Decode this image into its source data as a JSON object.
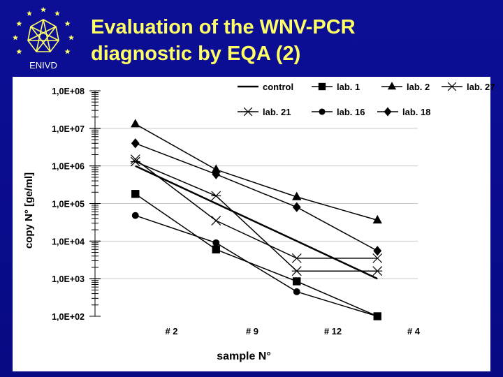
{
  "header": {
    "title_line1": "Evaluation of the WNV-PCR",
    "title_line2": "diagnostic by EQA (2)"
  },
  "logo": {
    "text": "ENIVD",
    "icon": "enivd-logo-icon"
  },
  "chart_data": {
    "type": "line",
    "ylabel": "copy N° [ge/ml]",
    "xlabel": "sample N°",
    "yscale": "log",
    "ylim": [
      100,
      100000000
    ],
    "yticks": [
      "1,0E+08",
      "1,0E+07",
      "1,0E+06",
      "1,0E+05",
      "1,0E+04",
      "1,0E+03",
      "1,0E+02"
    ],
    "categories": [
      "# 2",
      "# 9",
      "# 12",
      "# 4"
    ],
    "legend_position": "top",
    "grid": "horizontal",
    "series": [
      {
        "name": "control",
        "marker": "none",
        "width": 2.5,
        "values": [
          1000000,
          100000,
          10000,
          1000
        ]
      },
      {
        "name": "lab. 1",
        "marker": "square",
        "width": 1.5,
        "values": [
          180000,
          6000,
          850,
          100
        ]
      },
      {
        "name": "lab. 2",
        "marker": "triangle",
        "width": 1.5,
        "values": [
          13000000,
          800000,
          150000,
          36000
        ]
      },
      {
        "name": "lab. 27",
        "marker": "x",
        "width": 1.5,
        "values": [
          1500000,
          35000,
          3500,
          3500
        ]
      },
      {
        "name": "lab. 21",
        "marker": "asterisk",
        "width": 1.5,
        "values": [
          1300000,
          160000,
          1600,
          1600
        ]
      },
      {
        "name": "lab. 16",
        "marker": "circle",
        "width": 1.5,
        "values": [
          48000,
          9000,
          450,
          100
        ]
      },
      {
        "name": "lab. 18",
        "marker": "diamond",
        "width": 1.5,
        "values": [
          4000000,
          600000,
          80000,
          5500
        ]
      }
    ]
  }
}
